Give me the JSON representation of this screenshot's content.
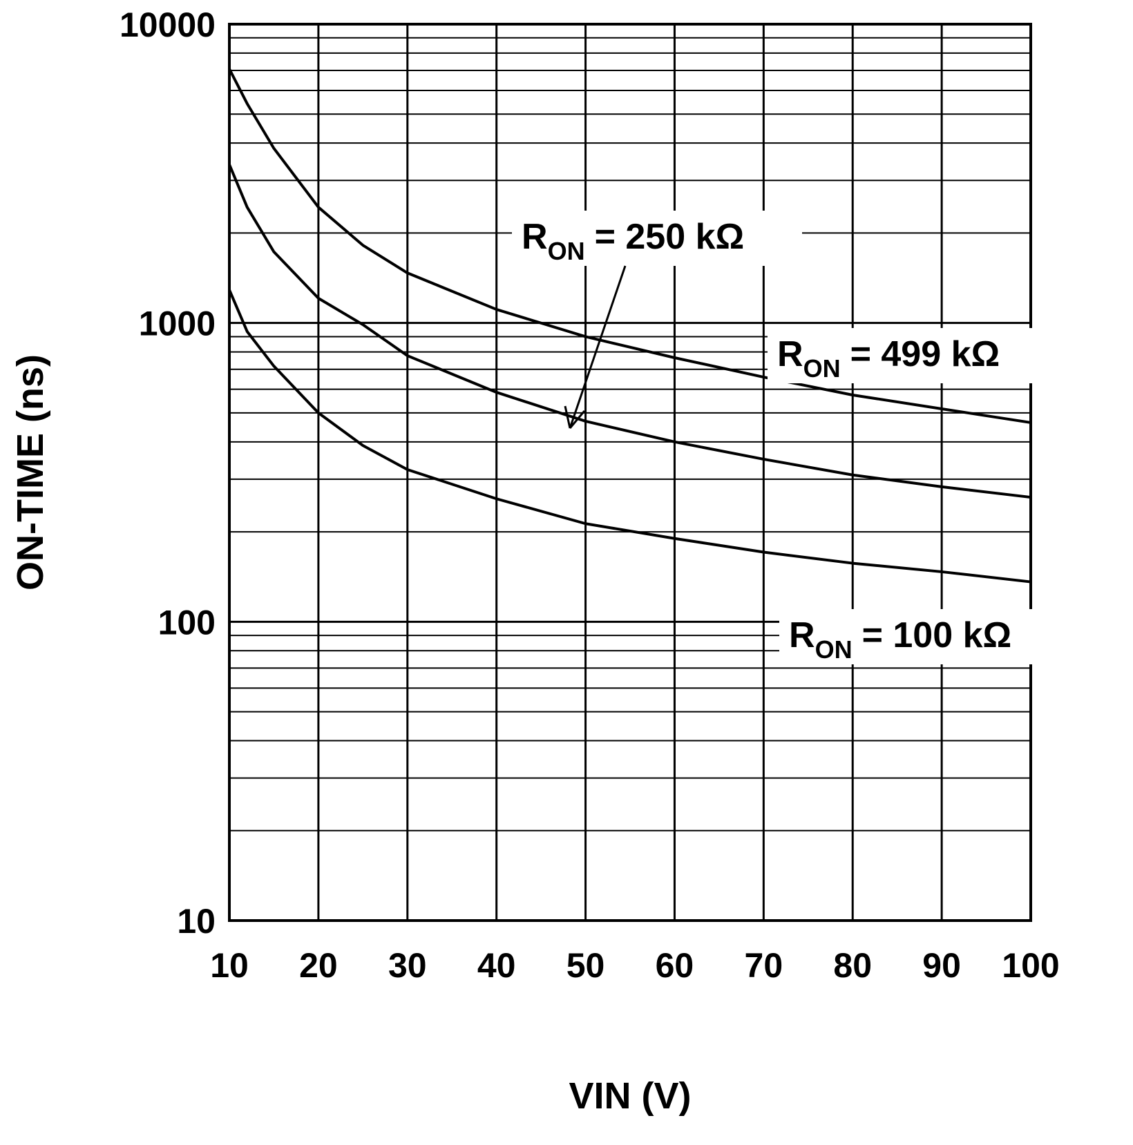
{
  "chart_data": {
    "type": "line",
    "xlabel": "VIN (V)",
    "ylabel": "ON-TIME (ns)",
    "x": [
      10,
      12,
      15,
      20,
      25,
      30,
      40,
      50,
      60,
      70,
      80,
      90,
      100
    ],
    "series": [
      {
        "label": {
          "base": "R",
          "sub": "ON",
          "text": "= 499 kΩ"
        },
        "color": "#000000",
        "values": [
          7080,
          5420,
          3840,
          2440,
          1820,
          1470,
          1110,
          900,
          765,
          659,
          574,
          516,
          464
        ]
      },
      {
        "label": {
          "base": "R",
          "sub": "ON",
          "text": "= 250 kΩ"
        },
        "color": "#000000",
        "values": [
          3390,
          2440,
          1730,
          1210,
          987,
          777,
          586,
          469,
          400,
          350,
          310,
          283,
          261
        ]
      },
      {
        "label": {
          "base": "R",
          "sub": "ON",
          "text": "= 100 kΩ"
        },
        "color": "#000000",
        "values": [
          1290,
          936,
          717,
          500,
          389,
          323,
          258,
          213,
          190,
          171,
          157,
          147,
          136
        ]
      }
    ],
    "xlim": [
      10,
      100
    ],
    "xticks": [
      10,
      20,
      30,
      40,
      50,
      60,
      70,
      80,
      90,
      100
    ],
    "ylim": [
      10,
      10000
    ],
    "yticks": [
      10,
      100,
      1000,
      10000
    ],
    "log_y": true,
    "grid": true
  }
}
